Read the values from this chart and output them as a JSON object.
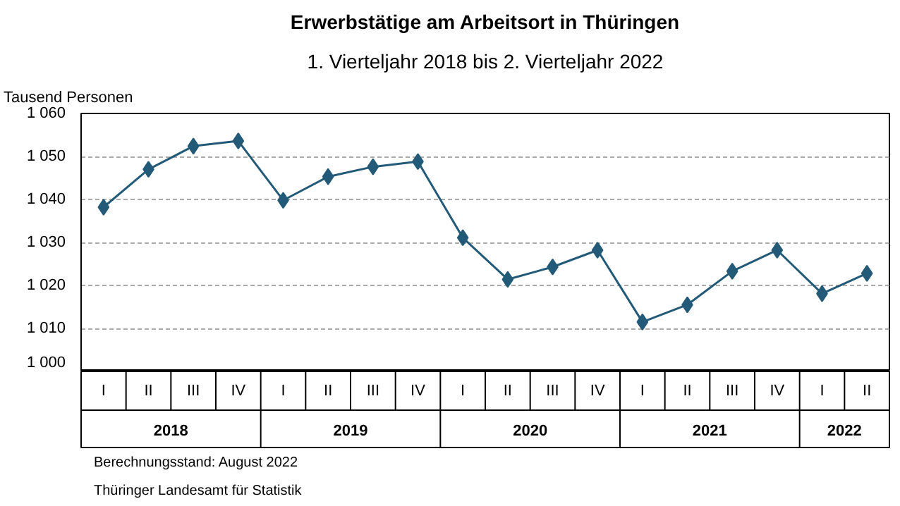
{
  "chart_data": {
    "type": "line",
    "title": "Erwerbstätige am Arbeitsort in Thüringen",
    "subtitle": "1. Vierteljahr 2018 bis 2. Vierteljahr 2022",
    "ylabel": "Tausend Personen",
    "categories": [
      "I",
      "II",
      "III",
      "IV",
      "I",
      "II",
      "III",
      "IV",
      "I",
      "II",
      "III",
      "IV",
      "I",
      "II",
      "III",
      "IV",
      "I",
      "II"
    ],
    "series": [
      {
        "color": "#235a78",
        "values": [
          1038.2,
          1047.0,
          1052.4,
          1053.6,
          1039.8,
          1045.3,
          1047.6,
          1048.8,
          1031.1,
          1021.4,
          1024.3,
          1028.2,
          1011.5,
          1015.5,
          1023.3,
          1028.2,
          1018.1,
          1022.8
        ]
      }
    ],
    "ylim": [
      1000,
      1060
    ],
    "yticks": [
      {
        "value": 1000,
        "label": "1 000"
      },
      {
        "value": 1010,
        "label": "1 010"
      },
      {
        "value": 1020,
        "label": "1 020"
      },
      {
        "value": 1030,
        "label": "1 030"
      },
      {
        "value": 1040,
        "label": "1 040"
      },
      {
        "value": 1050,
        "label": "1 050"
      },
      {
        "value": 1060,
        "label": "1 060"
      }
    ],
    "grid": "y",
    "marker": "diamond",
    "line_style": "solid",
    "annotations": [
      "2018",
      "2019",
      "2020",
      "2021",
      "2022",
      "Berechnungsstand: August 2022",
      "Thüringer Landesamt für Statistik"
    ]
  }
}
